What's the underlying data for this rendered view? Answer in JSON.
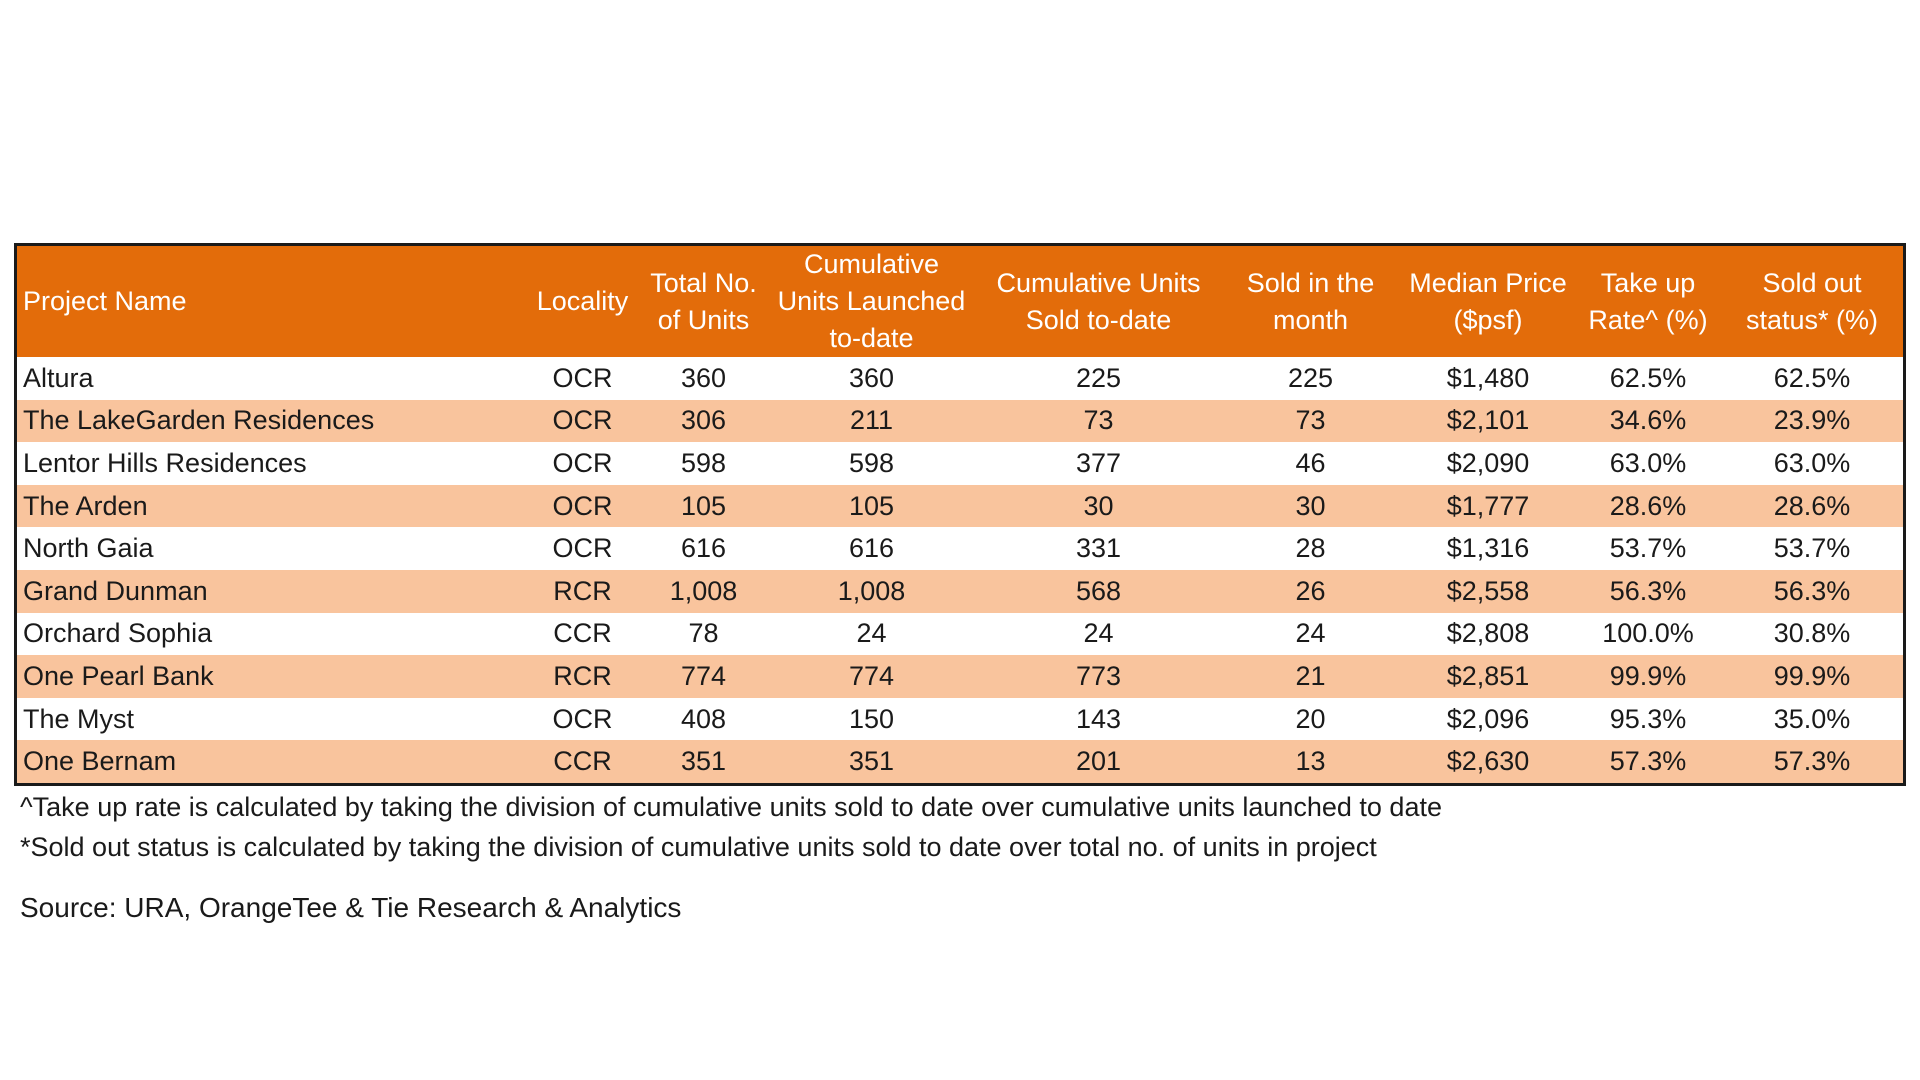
{
  "colors": {
    "header_bg": "#e36c0a",
    "header_text": "#ffffff",
    "row_shade": "#f9c49d",
    "row_plain": "#ffffff",
    "border": "#1a1a1a"
  },
  "table": {
    "headers": [
      "Project Name",
      "Locality",
      "Total No. of Units",
      "Cumulative Units Launched to-date",
      "Cumulative Units Sold to-date",
      "Sold in the month",
      "Median Price ($psf)",
      "Take up Rate^ (%)",
      "Sold out status* (%)"
    ],
    "rows": [
      [
        "Altura",
        "OCR",
        "360",
        "360",
        "225",
        "225",
        "$1,480",
        "62.5%",
        "62.5%"
      ],
      [
        "The LakeGarden Residences",
        "OCR",
        "306",
        "211",
        "73",
        "73",
        "$2,101",
        "34.6%",
        "23.9%"
      ],
      [
        "Lentor Hills Residences",
        "OCR",
        "598",
        "598",
        "377",
        "46",
        "$2,090",
        "63.0%",
        "63.0%"
      ],
      [
        "The Arden",
        "OCR",
        "105",
        "105",
        "30",
        "30",
        "$1,777",
        "28.6%",
        "28.6%"
      ],
      [
        "North Gaia",
        "OCR",
        "616",
        "616",
        "331",
        "28",
        "$1,316",
        "53.7%",
        "53.7%"
      ],
      [
        "Grand Dunman",
        "RCR",
        "1,008",
        "1,008",
        "568",
        "26",
        "$2,558",
        "56.3%",
        "56.3%"
      ],
      [
        "Orchard Sophia",
        "CCR",
        "78",
        "24",
        "24",
        "24",
        "$2,808",
        "100.0%",
        "30.8%"
      ],
      [
        "One Pearl Bank",
        "RCR",
        "774",
        "774",
        "773",
        "21",
        "$2,851",
        "99.9%",
        "99.9%"
      ],
      [
        "The Myst",
        "OCR",
        "408",
        "150",
        "143",
        "20",
        "$2,096",
        "95.3%",
        "35.0%"
      ],
      [
        "One Bernam",
        "CCR",
        "351",
        "351",
        "201",
        "13",
        "$2,630",
        "57.3%",
        "57.3%"
      ]
    ]
  },
  "footnotes": [
    "^Take up rate is calculated by taking the division of cumulative units sold to date over cumulative units launched to date",
    "*Sold out status is calculated by taking the division of cumulative units sold to date over total no. of units in project"
  ],
  "source": "Source: URA, OrangeTee & Tie Research & Analytics"
}
